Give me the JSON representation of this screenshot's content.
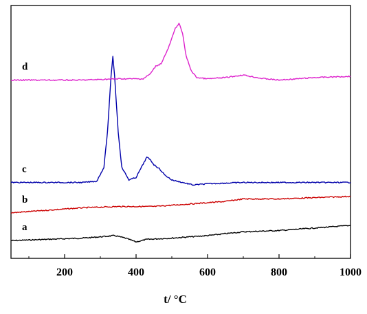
{
  "chart_data": {
    "type": "line",
    "title": "",
    "xlabel": "t/ °C",
    "ylabel": "",
    "xlim": [
      50,
      1000
    ],
    "ylim": [
      0,
      1
    ],
    "x_ticks": [
      200,
      400,
      600,
      800,
      1000
    ],
    "y_ticks_shown": false,
    "grid": false,
    "legend": "none",
    "series": [
      {
        "label": "a",
        "color": "#000000",
        "points": [
          [
            50,
            0.07
          ],
          [
            150,
            0.075
          ],
          [
            250,
            0.08
          ],
          [
            300,
            0.085
          ],
          [
            340,
            0.09
          ],
          [
            370,
            0.08
          ],
          [
            400,
            0.065
          ],
          [
            430,
            0.075
          ],
          [
            500,
            0.08
          ],
          [
            600,
            0.09
          ],
          [
            700,
            0.105
          ],
          [
            800,
            0.11
          ],
          [
            900,
            0.12
          ],
          [
            1000,
            0.13
          ]
        ]
      },
      {
        "label": "b",
        "color": "#cc0000",
        "points": [
          [
            50,
            0.18
          ],
          [
            150,
            0.19
          ],
          [
            250,
            0.2
          ],
          [
            350,
            0.205
          ],
          [
            450,
            0.205
          ],
          [
            550,
            0.215
          ],
          [
            650,
            0.225
          ],
          [
            700,
            0.235
          ],
          [
            800,
            0.235
          ],
          [
            900,
            0.24
          ],
          [
            1000,
            0.245
          ]
        ]
      },
      {
        "label": "c",
        "color": "#0000aa",
        "points": [
          [
            50,
            0.3
          ],
          [
            150,
            0.3
          ],
          [
            250,
            0.3
          ],
          [
            290,
            0.305
          ],
          [
            310,
            0.36
          ],
          [
            320,
            0.5
          ],
          [
            330,
            0.72
          ],
          [
            335,
            0.8
          ],
          [
            340,
            0.72
          ],
          [
            350,
            0.5
          ],
          [
            360,
            0.36
          ],
          [
            380,
            0.31
          ],
          [
            400,
            0.32
          ],
          [
            415,
            0.36
          ],
          [
            430,
            0.4
          ],
          [
            440,
            0.39
          ],
          [
            450,
            0.37
          ],
          [
            465,
            0.355
          ],
          [
            480,
            0.33
          ],
          [
            500,
            0.31
          ],
          [
            530,
            0.3
          ],
          [
            560,
            0.29
          ],
          [
            600,
            0.295
          ],
          [
            700,
            0.3
          ],
          [
            800,
            0.3
          ],
          [
            900,
            0.3
          ],
          [
            1000,
            0.3
          ]
        ]
      },
      {
        "label": "d",
        "color": "#dd22cc",
        "points": [
          [
            50,
            0.705
          ],
          [
            150,
            0.705
          ],
          [
            250,
            0.705
          ],
          [
            350,
            0.71
          ],
          [
            420,
            0.71
          ],
          [
            440,
            0.73
          ],
          [
            455,
            0.76
          ],
          [
            470,
            0.77
          ],
          [
            490,
            0.83
          ],
          [
            510,
            0.91
          ],
          [
            520,
            0.93
          ],
          [
            530,
            0.89
          ],
          [
            540,
            0.8
          ],
          [
            555,
            0.74
          ],
          [
            570,
            0.715
          ],
          [
            600,
            0.71
          ],
          [
            650,
            0.715
          ],
          [
            700,
            0.725
          ],
          [
            750,
            0.712
          ],
          [
            800,
            0.705
          ],
          [
            850,
            0.71
          ],
          [
            900,
            0.715
          ],
          [
            1000,
            0.72
          ]
        ]
      }
    ]
  }
}
